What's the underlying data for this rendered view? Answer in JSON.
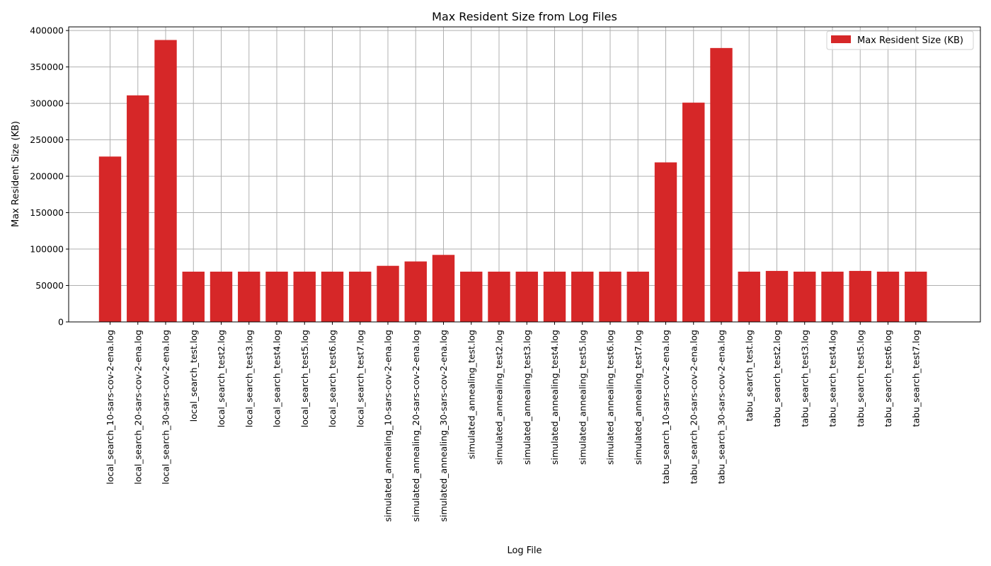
{
  "chart_data": {
    "type": "bar",
    "title": "Max Resident Size from Log Files",
    "xlabel": "Log File",
    "ylabel": "Max Resident Size (KB)",
    "ylim": [
      0,
      405000
    ],
    "yticks": [
      0,
      50000,
      100000,
      150000,
      200000,
      250000,
      300000,
      350000,
      400000
    ],
    "grid": true,
    "legend_position": "top-right",
    "bar_color": "#d62728",
    "categories": [
      "local_search_10-sars-cov-2-ena.log",
      "local_search_20-sars-cov-2-ena.log",
      "local_search_30-sars-cov-2-ena.log",
      "local_search_test.log",
      "local_search_test2.log",
      "local_search_test3.log",
      "local_search_test4.log",
      "local_search_test5.log",
      "local_search_test6.log",
      "local_search_test7.log",
      "simulated_annealing_10-sars-cov-2-ena.log",
      "simulated_annealing_20-sars-cov-2-ena.log",
      "simulated_annealing_30-sars-cov-2-ena.log",
      "simulated_annealing_test.log",
      "simulated_annealing_test2.log",
      "simulated_annealing_test3.log",
      "simulated_annealing_test4.log",
      "simulated_annealing_test5.log",
      "simulated_annealing_test6.log",
      "simulated_annealing_test7.log",
      "tabu_search_10-sars-cov-2-ena.log",
      "tabu_search_20-sars-cov-2-ena.log",
      "tabu_search_30-sars-cov-2-ena.log",
      "tabu_search_test.log",
      "tabu_search_test2.log",
      "tabu_search_test3.log",
      "tabu_search_test4.log",
      "tabu_search_test5.log",
      "tabu_search_test6.log",
      "tabu_search_test7.log"
    ],
    "series": [
      {
        "name": "Max Resident Size (KB)",
        "values": [
          227000,
          311000,
          387000,
          69000,
          69000,
          69000,
          69000,
          69000,
          69000,
          69000,
          77000,
          83000,
          92000,
          69000,
          69000,
          69000,
          69000,
          69000,
          69000,
          69000,
          219000,
          301000,
          376000,
          69000,
          70000,
          69000,
          69000,
          70000,
          69000,
          69000
        ]
      }
    ]
  }
}
